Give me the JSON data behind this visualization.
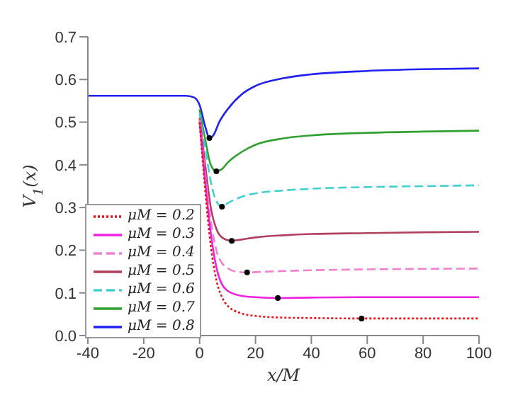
{
  "chart_data": {
    "type": "line",
    "xlabel": "x/M",
    "ylabel": "V$_{1}$(x)",
    "xlim": [
      -40,
      100
    ],
    "xticks": [
      -40,
      -20,
      0,
      20,
      40,
      60,
      80,
      100
    ],
    "ylim": [
      0,
      0.7
    ],
    "yticks": [
      {
        "value": 0,
        "label": "0.0"
      },
      0.1,
      0.2,
      0.3,
      0.4,
      0.5,
      0.6,
      0.7
    ],
    "grid": false,
    "legend": "bottom left",
    "marker": "none",
    "series": [
      {
        "name": "μM = 0.2",
        "color": "#e8101a",
        "line_style": "dotted",
        "x": [
          0,
          2,
          4,
          6,
          8,
          10,
          15,
          20,
          30,
          40,
          58,
          80,
          100
        ],
        "values": [
          0.5,
          0.34,
          0.21,
          0.13,
          0.09,
          0.07,
          0.052,
          0.046,
          0.042,
          0.041,
          0.04,
          0.04,
          0.04
        ]
      },
      {
        "name": "μM = 0.3",
        "color": "#f020e0",
        "line_style": "solid",
        "x": [
          0,
          2,
          4,
          6,
          8,
          10,
          15,
          20,
          28,
          40,
          60,
          100
        ],
        "values": [
          0.5,
          0.36,
          0.24,
          0.16,
          0.12,
          0.105,
          0.093,
          0.09,
          0.088,
          0.089,
          0.09,
          0.09
        ]
      },
      {
        "name": "μM = 0.4",
        "color": "#f080d0",
        "line_style": "dashed",
        "x": [
          0,
          2,
          4,
          6,
          8,
          10,
          13,
          17,
          25,
          40,
          60,
          100
        ],
        "values": [
          0.505,
          0.38,
          0.27,
          0.2,
          0.17,
          0.158,
          0.15,
          0.148,
          0.15,
          0.153,
          0.155,
          0.157
        ]
      },
      {
        "name": "μM = 0.5",
        "color": "#b04060",
        "line_style": "solid",
        "x": [
          0,
          2,
          4,
          6,
          8,
          11.5,
          15,
          20,
          30,
          40,
          60,
          80,
          100
        ],
        "values": [
          0.51,
          0.4,
          0.3,
          0.25,
          0.23,
          0.222,
          0.225,
          0.23,
          0.235,
          0.238,
          0.24,
          0.242,
          0.243
        ]
      },
      {
        "name": "μM = 0.6",
        "color": "#40d0d0",
        "line_style": "dashed",
        "x": [
          0,
          2,
          4,
          6,
          8,
          10,
          15,
          20,
          30,
          40,
          60,
          80,
          100
        ],
        "values": [
          0.52,
          0.44,
          0.36,
          0.315,
          0.302,
          0.31,
          0.325,
          0.333,
          0.34,
          0.344,
          0.348,
          0.35,
          0.352
        ]
      },
      {
        "name": "μM = 0.7",
        "color": "#30a030",
        "line_style": "solid",
        "x": [
          0,
          2,
          4,
          6,
          8,
          10,
          15,
          20,
          30,
          40,
          60,
          80,
          100
        ],
        "values": [
          0.53,
          0.46,
          0.4,
          0.385,
          0.39,
          0.405,
          0.43,
          0.447,
          0.462,
          0.469,
          0.475,
          0.478,
          0.48
        ]
      },
      {
        "name": "μM = 0.8",
        "color": "#2020f0",
        "line_style": "solid",
        "x": [
          -40,
          -5,
          -2,
          0,
          2,
          3.5,
          5,
          7,
          10,
          15,
          20,
          30,
          40,
          60,
          80,
          100
        ],
        "values": [
          0.562,
          0.562,
          0.558,
          0.54,
          0.49,
          0.463,
          0.47,
          0.5,
          0.53,
          0.565,
          0.585,
          0.603,
          0.612,
          0.62,
          0.624,
          0.626
        ]
      },
      {
        "type": "scatter",
        "color": "#000000",
        "marker": "circle",
        "x": [
          58,
          28,
          17,
          11.5,
          8,
          6,
          3.5
        ],
        "values": [
          0.04,
          0.088,
          0.148,
          0.222,
          0.302,
          0.385,
          0.463
        ]
      }
    ]
  }
}
